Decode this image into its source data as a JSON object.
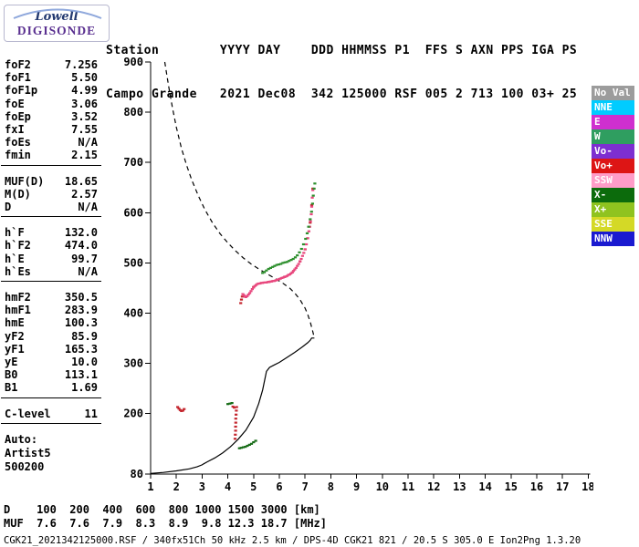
{
  "logo": {
    "brand": "Lowell",
    "product": "DIGISONDE"
  },
  "header": {
    "columns": [
      {
        "label": "Station",
        "value": "Campo Grande"
      },
      {
        "label": "YYYY",
        "value": "2021"
      },
      {
        "label": "DAY",
        "value": "Dec08"
      },
      {
        "label": "DDD",
        "value": "342"
      },
      {
        "label": "HHMMSS",
        "value": "125000"
      },
      {
        "label": "P1",
        "value": "RSF"
      },
      {
        "label": "FFS",
        "value": "005"
      },
      {
        "label": "S",
        "value": "2"
      },
      {
        "label": "AXN",
        "value": "713"
      },
      {
        "label": "PPS",
        "value": "100"
      },
      {
        "label": "IGA",
        "value": "03+"
      },
      {
        "label": "PS",
        "value": "25"
      }
    ]
  },
  "parameters": {
    "groups": [
      {
        "rows": [
          [
            "foF2",
            "7.256"
          ],
          [
            "foF1",
            "5.50"
          ],
          [
            "foF1p",
            "4.99"
          ],
          [
            "foE",
            "3.06"
          ],
          [
            "foEp",
            "3.52"
          ],
          [
            "fxI",
            "7.55"
          ],
          [
            "foEs",
            "N/A"
          ],
          [
            "fmin",
            "2.15"
          ]
        ]
      },
      {
        "rows": [
          [
            "MUF(D)",
            "18.65"
          ],
          [
            "M(D)",
            "2.57"
          ],
          [
            "D",
            "N/A"
          ]
        ]
      },
      {
        "rows": [
          [
            "h`F",
            "132.0"
          ],
          [
            "h`F2",
            "474.0"
          ],
          [
            "h`E",
            "99.7"
          ],
          [
            "h`Es",
            "N/A"
          ]
        ]
      },
      {
        "rows": [
          [
            "hmF2",
            "350.5"
          ],
          [
            "hmF1",
            "283.9"
          ],
          [
            "hmE",
            "100.3"
          ],
          [
            "yF2",
            "85.9"
          ],
          [
            "yF1",
            "165.3"
          ],
          [
            "yE",
            "10.0"
          ],
          [
            "B0",
            "113.1"
          ],
          [
            "B1",
            "1.69"
          ]
        ]
      },
      {
        "rows": [
          [
            "C-level",
            "11"
          ]
        ]
      }
    ],
    "footer": [
      "Auto:",
      "Artist5",
      "500200"
    ]
  },
  "legend": {
    "items": [
      {
        "label": "No Val",
        "color": "#9c9c9c"
      },
      {
        "label": "NNE",
        "color": "#00ccff"
      },
      {
        "label": "E",
        "color": "#cf2fcf"
      },
      {
        "label": "W",
        "color": "#2f9e60"
      },
      {
        "label": "Vo-",
        "color": "#7d2fd0"
      },
      {
        "label": "Vo+",
        "color": "#dd1515"
      },
      {
        "label": "SSW",
        "color": "#ff9cc8"
      },
      {
        "label": "X-",
        "color": "#0c6b0c"
      },
      {
        "label": "X+",
        "color": "#8fc31f"
      },
      {
        "label": "SSE",
        "color": "#d4d926"
      },
      {
        "label": "NNW",
        "color": "#1a1ad0"
      }
    ]
  },
  "chart_data": {
    "type": "scatter",
    "title": "",
    "xlabel": "",
    "ylabel": "",
    "xlim": [
      1,
      18
    ],
    "ylim": [
      80,
      900
    ],
    "x_ticks": [
      1,
      2,
      3,
      4,
      5,
      6,
      7,
      8,
      9,
      10,
      11,
      12,
      13,
      14,
      15,
      16,
      17,
      18
    ],
    "y_ticks": [
      80,
      200,
      300,
      400,
      500,
      600,
      700,
      800,
      900
    ],
    "grid": false,
    "profile": {
      "name": "true-height-profile",
      "style": "solid",
      "color": "#000000",
      "points": [
        [
          1.0,
          81
        ],
        [
          1.5,
          83
        ],
        [
          2.0,
          86
        ],
        [
          2.5,
          90
        ],
        [
          2.8,
          94
        ],
        [
          3.0,
          98
        ],
        [
          3.06,
          100
        ],
        [
          3.2,
          104
        ],
        [
          3.5,
          112
        ],
        [
          3.8,
          122
        ],
        [
          4.1,
          134
        ],
        [
          4.4,
          149
        ],
        [
          4.7,
          167
        ],
        [
          5.0,
          193
        ],
        [
          5.2,
          220
        ],
        [
          5.35,
          247
        ],
        [
          5.5,
          284
        ],
        [
          5.62,
          292
        ],
        [
          5.8,
          297
        ],
        [
          6.0,
          302
        ],
        [
          6.3,
          312
        ],
        [
          6.6,
          322
        ],
        [
          6.9,
          333
        ],
        [
          7.1,
          341
        ],
        [
          7.2,
          346
        ],
        [
          7.256,
          350.5
        ],
        [
          7.36,
          350.5
        ]
      ]
    },
    "transmission_curve": {
      "name": "muf-transmission-curve",
      "style": "dashed",
      "color": "#000000",
      "points": [
        [
          1.55,
          900
        ],
        [
          1.7,
          852
        ],
        [
          1.85,
          808
        ],
        [
          2.0,
          770
        ],
        [
          2.2,
          728
        ],
        [
          2.4,
          694
        ],
        [
          2.6,
          665
        ],
        [
          2.85,
          634
        ],
        [
          3.1,
          607
        ],
        [
          3.4,
          580
        ],
        [
          3.7,
          558
        ],
        [
          4.0,
          540
        ],
        [
          4.3,
          524
        ],
        [
          4.6,
          510
        ],
        [
          4.9,
          498
        ],
        [
          5.2,
          488
        ],
        [
          5.5,
          479
        ],
        [
          5.8,
          470
        ],
        [
          6.1,
          461
        ],
        [
          6.4,
          450
        ],
        [
          6.6,
          440
        ],
        [
          6.8,
          427
        ],
        [
          7.0,
          410
        ],
        [
          7.1,
          398
        ],
        [
          7.2,
          383
        ],
        [
          7.3,
          363
        ],
        [
          7.36,
          350
        ]
      ]
    },
    "echo_series": [
      {
        "name": "o-trace-red",
        "color": "#c4262e",
        "points": [
          [
            2.05,
            213
          ],
          [
            2.1,
            210
          ],
          [
            2.15,
            207
          ],
          [
            2.2,
            205
          ],
          [
            2.25,
            206
          ],
          [
            2.3,
            209
          ],
          [
            4.2,
            214
          ],
          [
            4.25,
            212
          ],
          [
            4.28,
            150
          ],
          [
            4.29,
            158
          ],
          [
            4.3,
            166
          ],
          [
            4.3,
            174
          ],
          [
            4.31,
            182
          ],
          [
            4.31,
            190
          ],
          [
            4.32,
            198
          ],
          [
            4.33,
            206
          ],
          [
            4.34,
            213
          ],
          [
            4.5,
            420
          ],
          [
            4.53,
            427
          ],
          [
            4.56,
            433
          ],
          [
            5.0,
            452
          ],
          [
            5.3,
            460
          ],
          [
            5.6,
            462
          ],
          [
            5.9,
            466
          ],
          [
            6.2,
            472
          ],
          [
            6.5,
            481
          ],
          [
            6.8,
            503
          ],
          [
            7.0,
            527
          ],
          [
            7.1,
            549
          ],
          [
            7.2,
            580
          ],
          [
            7.26,
            615
          ],
          [
            7.3,
            648
          ]
        ]
      },
      {
        "name": "o-trace-pink",
        "color": "#e8487e",
        "points": [
          [
            4.58,
            438
          ],
          [
            4.62,
            436
          ],
          [
            4.66,
            433
          ],
          [
            4.7,
            432
          ],
          [
            4.75,
            434
          ],
          [
            4.8,
            437
          ],
          [
            4.85,
            440
          ],
          [
            4.9,
            444
          ],
          [
            4.95,
            448
          ],
          [
            5.0,
            451
          ],
          [
            5.05,
            454
          ],
          [
            5.1,
            456
          ],
          [
            5.15,
            458
          ],
          [
            5.2,
            459
          ],
          [
            5.25,
            459
          ],
          [
            5.3,
            460
          ],
          [
            5.35,
            460
          ],
          [
            5.4,
            461
          ],
          [
            5.45,
            461
          ],
          [
            5.5,
            461
          ],
          [
            5.55,
            462
          ],
          [
            5.6,
            462
          ],
          [
            5.65,
            463
          ],
          [
            5.7,
            463
          ],
          [
            5.75,
            464
          ],
          [
            5.8,
            464
          ],
          [
            5.85,
            465
          ],
          [
            5.9,
            466
          ],
          [
            5.95,
            467
          ],
          [
            6.0,
            468
          ],
          [
            6.05,
            469
          ],
          [
            6.1,
            470
          ],
          [
            6.15,
            471
          ],
          [
            6.2,
            472
          ],
          [
            6.25,
            473
          ],
          [
            6.3,
            474
          ],
          [
            6.35,
            476
          ],
          [
            6.4,
            477
          ],
          [
            6.45,
            479
          ],
          [
            6.5,
            481
          ],
          [
            6.55,
            484
          ],
          [
            6.6,
            487
          ],
          [
            6.65,
            490
          ],
          [
            6.7,
            494
          ],
          [
            6.75,
            498
          ],
          [
            6.8,
            503
          ],
          [
            6.85,
            508
          ],
          [
            6.9,
            514
          ],
          [
            6.95,
            520
          ],
          [
            7.0,
            527
          ],
          [
            7.05,
            537
          ],
          [
            7.1,
            549
          ],
          [
            7.15,
            563
          ],
          [
            7.18,
            572
          ],
          [
            7.21,
            583
          ],
          [
            7.24,
            597
          ],
          [
            7.26,
            612
          ],
          [
            7.28,
            630
          ],
          [
            7.3,
            645
          ]
        ]
      },
      {
        "name": "x-trace-green",
        "color": "#2d8f2d",
        "points": [
          [
            5.35,
            480
          ],
          [
            5.42,
            482
          ],
          [
            5.5,
            485
          ],
          [
            5.58,
            488
          ],
          [
            5.66,
            490
          ],
          [
            5.74,
            492
          ],
          [
            5.82,
            494
          ],
          [
            5.9,
            496
          ],
          [
            5.98,
            497
          ],
          [
            6.06,
            498
          ],
          [
            6.14,
            500
          ],
          [
            6.22,
            501
          ],
          [
            6.3,
            502
          ],
          [
            6.38,
            504
          ],
          [
            6.46,
            506
          ],
          [
            6.54,
            508
          ],
          [
            6.62,
            511
          ],
          [
            6.7,
            515
          ],
          [
            6.78,
            521
          ],
          [
            6.86,
            528
          ],
          [
            6.94,
            537
          ],
          [
            7.02,
            548
          ],
          [
            7.08,
            559
          ],
          [
            7.14,
            572
          ],
          [
            7.2,
            587
          ],
          [
            7.25,
            602
          ],
          [
            7.29,
            618
          ],
          [
            7.32,
            634
          ],
          [
            7.35,
            648
          ],
          [
            7.38,
            658
          ]
        ]
      },
      {
        "name": "x-trace-dark-green",
        "color": "#166b16",
        "points": [
          [
            4.0,
            219
          ],
          [
            4.08,
            220
          ],
          [
            4.16,
            221
          ],
          [
            4.45,
            131
          ],
          [
            4.52,
            132
          ],
          [
            4.6,
            133
          ],
          [
            4.68,
            134
          ],
          [
            4.76,
            136
          ],
          [
            4.84,
            138
          ],
          [
            4.92,
            140
          ],
          [
            5.0,
            143
          ],
          [
            5.08,
            146
          ]
        ]
      }
    ]
  },
  "bottom": {
    "d_row": {
      "label": "D",
      "values": [
        "100",
        "200",
        "400",
        "600",
        "800",
        "1000",
        "1500",
        "3000"
      ],
      "unit": "[km]"
    },
    "muf_row": {
      "label": "MUF",
      "values": [
        "7.6",
        "7.6",
        "7.9",
        "8.3",
        "8.9",
        "9.8",
        "12.3",
        "18.7"
      ],
      "unit": "[MHz]"
    },
    "status": "CGK21_2021342125000.RSF / 340fx51Ch 50 kHz 2.5 km / DPS-4D CGK21 821 / 20.5 S 305.0 E Ion2Png 1.3.20"
  }
}
